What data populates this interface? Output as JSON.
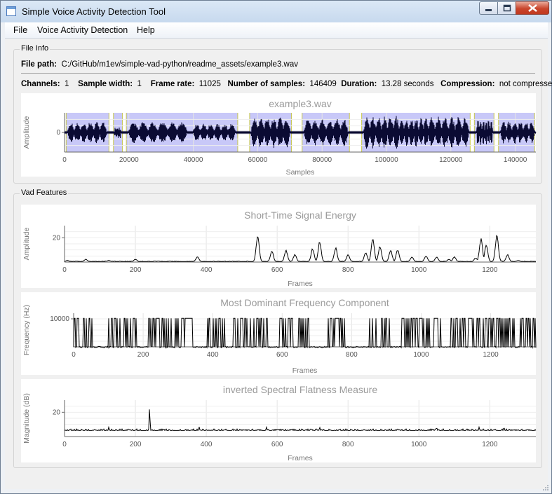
{
  "window": {
    "title": "Simple Voice Activity Detection Tool",
    "controls": {
      "minimize": "minimize",
      "maximize": "maximize",
      "close": "close"
    }
  },
  "menu": {
    "items": [
      "File",
      "Voice Activity Detection",
      "Help"
    ]
  },
  "file_info": {
    "group_title": "File Info",
    "path_label": "File path:",
    "path_value": "C:/GitHub/m1ev/simple-vad-python/readme_assets/example3.wav",
    "channels_label": "Channels:",
    "channels_value": "1",
    "sample_width_label": "Sample width:",
    "sample_width_value": "1",
    "frame_rate_label": "Frame rate:",
    "frame_rate_value": "11025",
    "num_samples_label": "Number of samples:",
    "num_samples_value": "146409",
    "duration_label": "Duration:",
    "duration_value": "13.28 seconds",
    "compression_label": "Compression:",
    "compression_value": "not compressed"
  },
  "vad_features": {
    "group_title": "Vad Features"
  },
  "chart_data": [
    {
      "id": "waveform",
      "type": "line",
      "title": "example3.wav",
      "xlabel": "Samples",
      "ylabel": "Amplitude",
      "xlim": [
        0,
        146409
      ],
      "ylim": [
        -1,
        1
      ],
      "xticks": [
        0,
        20000,
        40000,
        60000,
        80000,
        100000,
        120000,
        140000
      ],
      "yticks": [
        0
      ],
      "series_color": "#0b0b33",
      "highlight_color": "#c8c8f8",
      "voiced_regions": [
        [
          500,
          13800
        ],
        [
          15200,
          18000
        ],
        [
          19200,
          53800
        ],
        [
          57500,
          70500
        ],
        [
          73800,
          88500
        ],
        [
          92300,
          126000
        ],
        [
          127300,
          133400
        ],
        [
          134800,
          146000
        ]
      ],
      "bursts": [
        [
          1000,
          13000,
          0.55
        ],
        [
          15500,
          17500,
          0.3
        ],
        [
          20000,
          38000,
          0.55
        ],
        [
          40000,
          53000,
          0.45
        ],
        [
          58000,
          70000,
          0.8
        ],
        [
          74500,
          88000,
          0.7
        ],
        [
          93000,
          104000,
          0.85
        ],
        [
          104000,
          113000,
          0.75
        ],
        [
          113000,
          125500,
          0.8
        ],
        [
          128000,
          133000,
          0.7
        ],
        [
          135500,
          146000,
          0.6
        ]
      ]
    },
    {
      "id": "energy",
      "type": "line",
      "title": "Short-Time Signal Energy",
      "xlabel": "Frames",
      "ylabel": "Amplitude",
      "xlim": [
        0,
        1330
      ],
      "ylim": [
        0,
        30
      ],
      "xticks": [
        0,
        200,
        400,
        600,
        800,
        1000,
        1200
      ],
      "yticks": [
        20
      ],
      "series_color": "#000000",
      "peaks": [
        [
          8,
          2
        ],
        [
          60,
          3
        ],
        [
          125,
          2
        ],
        [
          200,
          3
        ],
        [
          265,
          1.5
        ],
        [
          375,
          5
        ],
        [
          545,
          23
        ],
        [
          585,
          10
        ],
        [
          625,
          11
        ],
        [
          650,
          7
        ],
        [
          700,
          12
        ],
        [
          720,
          18
        ],
        [
          765,
          13
        ],
        [
          800,
          7
        ],
        [
          850,
          9
        ],
        [
          870,
          21
        ],
        [
          890,
          14
        ],
        [
          920,
          11
        ],
        [
          940,
          11
        ],
        [
          980,
          5
        ],
        [
          1020,
          6
        ],
        [
          1050,
          5
        ],
        [
          1085,
          3
        ],
        [
          1100,
          5
        ],
        [
          1160,
          4
        ],
        [
          1175,
          21
        ],
        [
          1190,
          15
        ],
        [
          1220,
          24
        ],
        [
          1250,
          7
        ],
        [
          1280,
          2
        ]
      ]
    },
    {
      "id": "frequency",
      "type": "line",
      "title": "Most Dominant Frequency Component",
      "xlabel": "Frames",
      "ylabel": "Frequency (Hz)",
      "xlim": [
        0,
        1330
      ],
      "ylim": [
        0,
        12000
      ],
      "xticks": [
        0,
        200,
        400,
        600,
        800,
        1000,
        1200
      ],
      "yticks": [
        10000
      ],
      "series_color": "#000000",
      "spike_regions": [
        [
          0,
          60
        ],
        [
          90,
          180
        ],
        [
          215,
          345
        ],
        [
          385,
          435
        ],
        [
          460,
          560
        ],
        [
          590,
          635
        ],
        [
          640,
          680
        ],
        [
          730,
          780
        ],
        [
          840,
          910
        ],
        [
          940,
          1060
        ],
        [
          1085,
          1170
        ],
        [
          1175,
          1270
        ],
        [
          1285,
          1330
        ]
      ]
    },
    {
      "id": "flatness",
      "type": "line",
      "title": "inverted Spectral Flatness Measure",
      "xlabel": "Frames",
      "ylabel": "Magnitude (dB)",
      "xlim": [
        0,
        1330
      ],
      "ylim": [
        0,
        30
      ],
      "xticks": [
        0,
        200,
        400,
        600,
        800,
        1000,
        1200
      ],
      "yticks": [
        20
      ],
      "series_color": "#000000",
      "baseline": 5,
      "peaks": [
        [
          240,
          27
        ],
        [
          125,
          8
        ],
        [
          380,
          8
        ],
        [
          570,
          8
        ],
        [
          720,
          8
        ],
        [
          1050,
          8
        ],
        [
          1170,
          8
        ],
        [
          1240,
          8
        ]
      ]
    }
  ]
}
